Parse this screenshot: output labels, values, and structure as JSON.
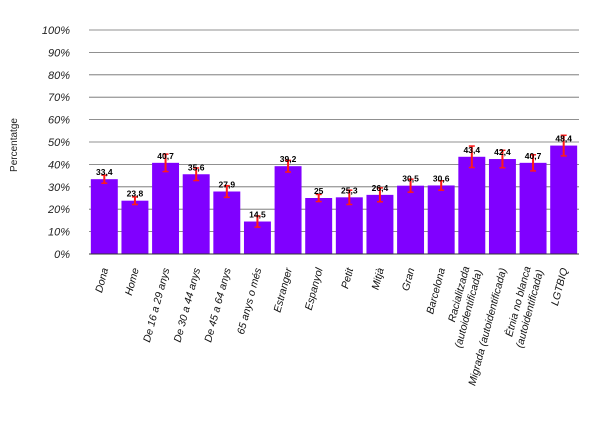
{
  "chart_data": {
    "type": "bar",
    "ylabel": "Percentatge",
    "ylim": [
      0,
      100
    ],
    "yticks": [
      "0%",
      "10%",
      "20%",
      "30%",
      "40%",
      "50%",
      "60%",
      "70%",
      "80%",
      "90%",
      "100%"
    ],
    "grid": true,
    "colors": {
      "bar": "#8000ff",
      "error_bar": "#ff1a1a"
    },
    "categories": [
      "Dona",
      "Home",
      "De 16 a 29 anys",
      "De 30 a 44 anys",
      "De 45 a 64 anys",
      "65 anys o més",
      "Estranger",
      "Espanyol",
      "Petit",
      "Mitjà",
      "Gran",
      "Barcelona",
      "Racialitzada (autoidentificada)",
      "Migrada (autoidentificada)",
      "Ètnia no blanca (autoidentificada)",
      "LGTBIQ"
    ],
    "category_lines": [
      [
        "Dona"
      ],
      [
        "Home"
      ],
      [
        "De 16 a 29 anys"
      ],
      [
        "De 30 a 44 anys"
      ],
      [
        "De 45 a 64 anys"
      ],
      [
        "65 anys o més"
      ],
      [
        "Estranger"
      ],
      [
        "Espanyol"
      ],
      [
        "Petit"
      ],
      [
        "Mitjà"
      ],
      [
        "Gran"
      ],
      [
        "Barcelona"
      ],
      [
        "Racialitzada",
        "(autoidentificada)"
      ],
      [
        "Migrada (autoidentificada)"
      ],
      [
        "Ètnia no blanca",
        "(autoidentificada)"
      ],
      [
        "LGTBIQ"
      ]
    ],
    "values": [
      33.4,
      23.8,
      40.7,
      35.6,
      27.9,
      14.5,
      39.2,
      25,
      25.3,
      26.4,
      30.5,
      30.6,
      43.4,
      42.4,
      40.7,
      48.4
    ],
    "value_labels": [
      "33,4",
      "23,8",
      "40,7",
      "35,6",
      "27,9",
      "14,5",
      "39,2",
      "25",
      "25,3",
      "26,4",
      "30,5",
      "30,6",
      "43,4",
      "42,4",
      "40,7",
      "48,4"
    ],
    "error_bars": [
      [
        31.6,
        35.2
      ],
      [
        22.1,
        25.5
      ],
      [
        36.8,
        44.6
      ],
      [
        32.8,
        38.4
      ],
      [
        25.3,
        30.5
      ],
      [
        12.0,
        17.0
      ],
      [
        36.6,
        41.8
      ],
      [
        23.4,
        26.6
      ],
      [
        22.1,
        28.5
      ],
      [
        23.3,
        29.5
      ],
      [
        27.6,
        33.4
      ],
      [
        28.5,
        32.7
      ],
      [
        38.6,
        48.2
      ],
      [
        38.5,
        46.3
      ],
      [
        37.1,
        44.3
      ],
      [
        43.8,
        53.0
      ]
    ]
  }
}
